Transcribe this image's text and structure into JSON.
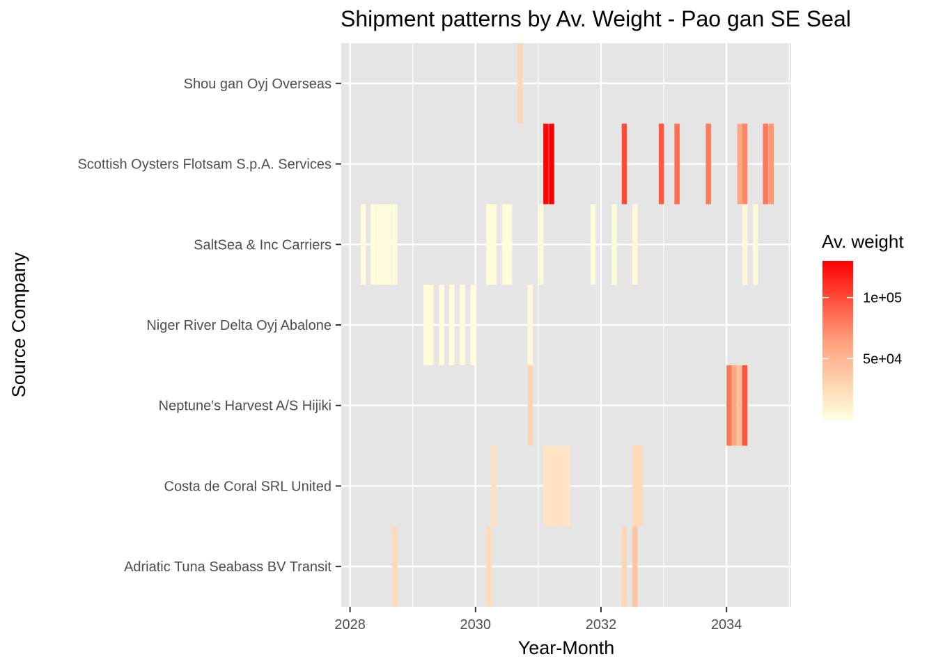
{
  "chart_data": {
    "type": "heatmap",
    "title": "Shipment patterns by Av. Weight - Pao gan SE Seal",
    "xlabel": "Year-Month",
    "ylabel": "Source Company",
    "xlim": [
      2027.86,
      2035.03
    ],
    "x_ticks": [
      2028,
      2030,
      2032,
      2034
    ],
    "x_tick_labels": [
      "2028",
      "2030",
      "2032",
      "2034"
    ],
    "categories": [
      "Adriatic Tuna Seabass BV Transit",
      "Costa de Coral SRL United",
      "Neptune's Harvest A/S Hijiki",
      "Niger River Delta  Oyj Abalone",
      "SaltSea & Inc Carriers",
      "Scottish Oysters Flotsam S.p.A. Services",
      "Shou gan  Oyj Overseas"
    ],
    "legend": {
      "title": "Av. weight",
      "min": 0,
      "max": 130000,
      "ticks": [
        50000,
        100000
      ],
      "tick_labels": [
        "5e+04",
        "1e+05"
      ],
      "low_color": "#FFFFE0",
      "mid_color": "#FFA07A",
      "high_color": "#FF0000",
      "position": "right"
    },
    "bin_width_months": 1,
    "series": [
      {
        "company": "Shou gan  Oyj Overseas",
        "cells": [
          {
            "x": 2030.67,
            "value": 28000
          }
        ]
      },
      {
        "company": "Scottish Oysters Flotsam S.p.A. Services",
        "cells": [
          {
            "x": 2031.08,
            "value": 128000
          },
          {
            "x": 2031.17,
            "value": 130000
          },
          {
            "x": 2032.33,
            "value": 100000
          },
          {
            "x": 2032.92,
            "value": 95000
          },
          {
            "x": 2033.17,
            "value": 85000
          },
          {
            "x": 2033.67,
            "value": 80000
          },
          {
            "x": 2034.17,
            "value": 60000
          },
          {
            "x": 2034.25,
            "value": 75000
          },
          {
            "x": 2034.58,
            "value": 82000
          },
          {
            "x": 2034.67,
            "value": 68000
          }
        ]
      },
      {
        "company": "SaltSea & Inc Carriers",
        "cells": [
          {
            "x": 2028.17,
            "value": 3000
          },
          {
            "x": 2028.33,
            "value": 3000
          },
          {
            "x": 2028.42,
            "value": 3000
          },
          {
            "x": 2028.5,
            "value": 3000
          },
          {
            "x": 2028.58,
            "value": 3000
          },
          {
            "x": 2028.67,
            "value": 3000
          },
          {
            "x": 2030.17,
            "value": 3000
          },
          {
            "x": 2030.25,
            "value": 3000
          },
          {
            "x": 2030.42,
            "value": 3000
          },
          {
            "x": 2030.5,
            "value": 3000
          },
          {
            "x": 2031.0,
            "value": 4000
          },
          {
            "x": 2031.83,
            "value": 3000
          },
          {
            "x": 2032.17,
            "value": 3000
          },
          {
            "x": 2032.5,
            "value": 4000
          },
          {
            "x": 2034.25,
            "value": 4000
          },
          {
            "x": 2034.42,
            "value": 4000
          }
        ]
      },
      {
        "company": "Niger River Delta  Oyj Abalone",
        "cells": [
          {
            "x": 2029.17,
            "value": 3000
          },
          {
            "x": 2029.25,
            "value": 3000
          },
          {
            "x": 2029.42,
            "value": 3000
          },
          {
            "x": 2029.58,
            "value": 3000
          },
          {
            "x": 2029.75,
            "value": 3000
          },
          {
            "x": 2029.92,
            "value": 3000
          },
          {
            "x": 2030.83,
            "value": 4000
          }
        ]
      },
      {
        "company": "Neptune's Harvest A/S Hijiki",
        "cells": [
          {
            "x": 2030.83,
            "value": 30000
          },
          {
            "x": 2034.0,
            "value": 82000
          },
          {
            "x": 2034.08,
            "value": 60000
          },
          {
            "x": 2034.17,
            "value": 45000
          },
          {
            "x": 2034.25,
            "value": 95000
          }
        ]
      },
      {
        "company": "Costa de Coral SRL United",
        "cells": [
          {
            "x": 2030.25,
            "value": 22000
          },
          {
            "x": 2031.08,
            "value": 18000
          },
          {
            "x": 2031.17,
            "value": 20000
          },
          {
            "x": 2031.25,
            "value": 18000
          },
          {
            "x": 2031.33,
            "value": 20000
          },
          {
            "x": 2031.42,
            "value": 18000
          },
          {
            "x": 2032.5,
            "value": 25000
          },
          {
            "x": 2032.58,
            "value": 25000
          }
        ]
      },
      {
        "company": "Adriatic Tuna Seabass BV Transit",
        "cells": [
          {
            "x": 2028.67,
            "value": 25000
          },
          {
            "x": 2030.17,
            "value": 25000
          },
          {
            "x": 2032.33,
            "value": 28000
          },
          {
            "x": 2032.5,
            "value": 40000
          }
        ]
      }
    ]
  },
  "colors": {
    "panel_background": "#E5E5E5",
    "grid_major": "#FFFFFF",
    "tick_mark": "#333333"
  }
}
